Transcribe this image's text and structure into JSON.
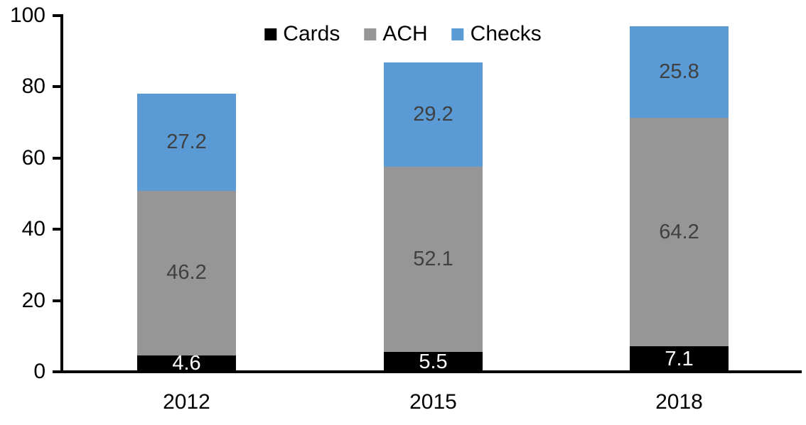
{
  "chart_data": {
    "type": "bar",
    "stacked": true,
    "title": "",
    "categories": [
      "2012",
      "2015",
      "2018"
    ],
    "series": [
      {
        "name": "Cards",
        "color": "#000000",
        "label_color": "#FFFFFF",
        "values": [
          4.6,
          5.5,
          7.1
        ]
      },
      {
        "name": "ACH",
        "color": "#969696",
        "label_color": "#404040",
        "values": [
          46.2,
          52.1,
          64.2
        ]
      },
      {
        "name": "Checks",
        "color": "#5B9BD5",
        "label_color": "#404040",
        "values": [
          27.2,
          29.2,
          25.8
        ]
      }
    ],
    "totals": [
      78.0,
      86.8,
      97.1
    ],
    "ylim": [
      0,
      100
    ],
    "yticks": [
      "0",
      "20",
      "40",
      "60",
      "80",
      "100"
    ],
    "legend_position": "top",
    "grid": false,
    "axis_color": "#000000",
    "background": "#FFFFFF"
  }
}
